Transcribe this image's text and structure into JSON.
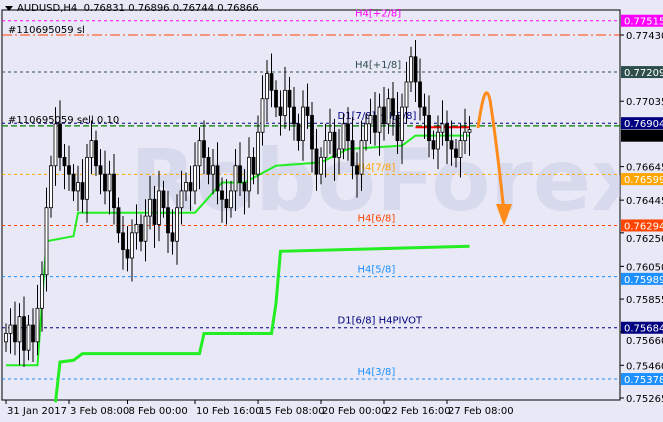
{
  "header": {
    "symbol": "AUDUSD,H4",
    "ohlc": "0.76831 0.76896 0.76744 0.76866"
  },
  "watermark": "RoboForex",
  "orders": {
    "sl_label": "#110695059 sl",
    "sell_label": "#110695059 sell 0.10",
    "sl_price": 0.7743,
    "sell_price": 0.76888
  },
  "chart_data": {
    "type": "candlestick",
    "symbol": "AUDUSD",
    "timeframe": "H4",
    "ylim": [
      0.7524,
      0.7764
    ],
    "y_ticks": [
      0.7743,
      0.77035,
      0.76645,
      0.76445,
      0.7625,
      0.7605,
      0.75855,
      0.7566,
      0.7546,
      0.75265
    ],
    "x_ticks": [
      {
        "label": "31 Jan 2017",
        "bar": 0
      },
      {
        "label": "3 Feb 08:00",
        "bar": 14
      },
      {
        "label": "8 Feb 00:00",
        "bar": 27
      },
      {
        "label": "10 Feb 16:00",
        "bar": 42
      },
      {
        "label": "15 Feb 08:00",
        "bar": 56
      },
      {
        "label": "20 Feb 00:00",
        "bar": 70
      },
      {
        "label": "22 Feb 16:00",
        "bar": 84
      },
      {
        "label": "27 Feb 08:00",
        "bar": 98
      }
    ],
    "closes": [
      0.7565,
      0.757,
      0.756,
      0.7575,
      0.7555,
      0.757,
      0.756,
      0.758,
      0.76,
      0.764,
      0.7665,
      0.769,
      0.767,
      0.7665,
      0.766,
      0.765,
      0.7655,
      0.7645,
      0.767,
      0.768,
      0.7665,
      0.766,
      0.765,
      0.766,
      0.764,
      0.7625,
      0.7615,
      0.761,
      0.7625,
      0.763,
      0.762,
      0.7635,
      0.7645,
      0.763,
      0.765,
      0.764,
      0.7625,
      0.762,
      0.764,
      0.765,
      0.7655,
      0.765,
      0.7665,
      0.768,
      0.767,
      0.766,
      0.7665,
      0.765,
      0.7645,
      0.764,
      0.765,
      0.7665,
      0.7655,
      0.765,
      0.767,
      0.766,
      0.7685,
      0.7705,
      0.772,
      0.771,
      0.77,
      0.7695,
      0.771,
      0.77,
      0.769,
      0.768,
      0.77,
      0.7695,
      0.7675,
      0.766,
      0.767,
      0.768,
      0.7685,
      0.767,
      0.7675,
      0.769,
      0.768,
      0.7665,
      0.766,
      0.768,
      0.769,
      0.7695,
      0.7685,
      0.77,
      0.769,
      0.7705,
      0.7695,
      0.768,
      0.77,
      0.7715,
      0.773,
      0.7715,
      0.77,
      0.7695,
      0.768,
      0.7675,
      0.7685,
      0.769,
      0.768,
      0.7675,
      0.767,
      0.768,
      0.7685,
      0.76866
    ],
    "indicator_lines": [
      {
        "color": "#22ee22",
        "points": [
          [
            0,
            0.7546
          ],
          [
            7,
            0.7546
          ],
          [
            9,
            0.762
          ],
          [
            15,
            0.7623
          ],
          [
            16,
            0.7637
          ],
          [
            42,
            0.7637
          ],
          [
            48,
            0.7655
          ],
          [
            53,
            0.7655
          ],
          [
            60,
            0.7665
          ],
          [
            70,
            0.7667
          ],
          [
            76,
            0.7675
          ],
          [
            88,
            0.7677
          ],
          [
            91,
            0.7683
          ],
          [
            103,
            0.7683
          ]
        ]
      },
      {
        "color": "#22ee22",
        "points": [
          [
            11,
            0.7524
          ],
          [
            12,
            0.7548
          ],
          [
            15,
            0.7549
          ],
          [
            17,
            0.7553
          ],
          [
            43,
            0.7553
          ],
          [
            44,
            0.7565
          ],
          [
            59,
            0.7565
          ],
          [
            60,
            0.7583
          ],
          [
            61,
            0.7614
          ],
          [
            103,
            0.7617
          ]
        ]
      }
    ],
    "levels": [
      {
        "label": "H4[+2/8]",
        "price": 0.77515,
        "price_label": "0.77515",
        "color": "#ff00ff"
      },
      {
        "label": "H4[+1/8]",
        "price": 0.77209,
        "price_label": "0.77209",
        "color": "#2f4f4f"
      },
      {
        "label": "D1[7/8] H4[8/8]",
        "price": 0.76904,
        "price_label": "0.76904",
        "color": "#000080"
      },
      {
        "label": "H4[7/8]",
        "price": 0.76599,
        "price_label": "0.76599",
        "color": "#ffa500"
      },
      {
        "label": "H4[6/8]",
        "price": 0.76294,
        "price_label": "0.76294",
        "color": "#ff4500"
      },
      {
        "label": "H4[5/8]",
        "price": 0.75989,
        "price_label": "0.75989",
        "color": "#1e90ff"
      },
      {
        "label": "D1[6/8] H4PIVOT",
        "price": 0.75684,
        "price_label": "0.75684",
        "color": "#000080"
      },
      {
        "label": "H4[3/8]",
        "price": 0.75378,
        "price_label": "0.75378",
        "color": "#1e90ff"
      }
    ],
    "current_price": {
      "price": 0.76866,
      "label": "0.76866",
      "color": "#000000"
    },
    "forecast_arrow": {
      "color": "#ff8c1a",
      "direction": "down"
    }
  }
}
